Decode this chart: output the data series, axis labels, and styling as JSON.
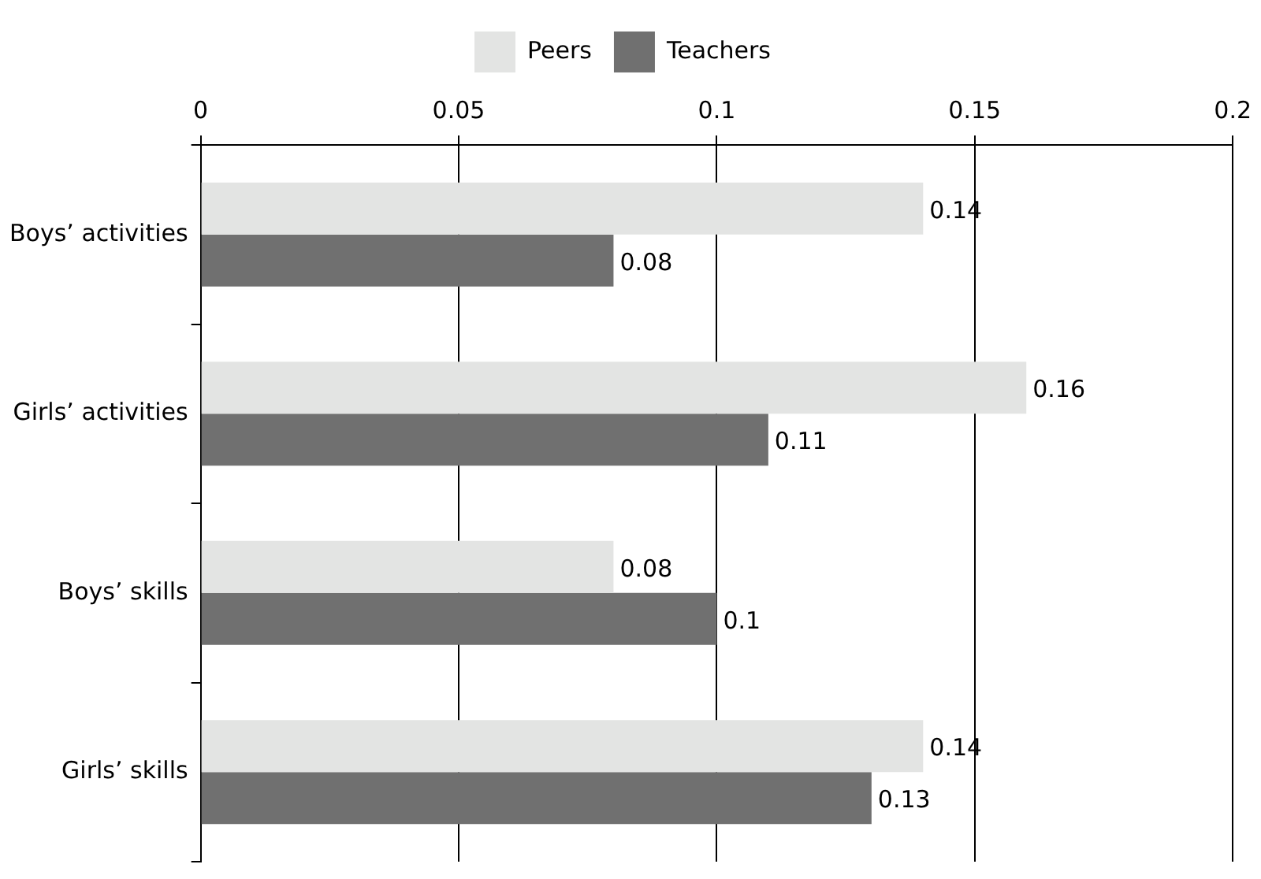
{
  "chart_data": {
    "type": "bar",
    "orientation": "horizontal",
    "categories": [
      "Boys’ activities",
      "Girls’ activities",
      "Boys’ skills",
      "Girls’ skills"
    ],
    "series": [
      {
        "name": "Peers",
        "color": "#e3e4e3",
        "values": [
          0.14,
          0.16,
          0.08,
          0.14
        ]
      },
      {
        "name": "Teachers",
        "color": "#707070",
        "values": [
          0.08,
          0.11,
          0.1,
          0.13
        ]
      }
    ],
    "xlim": [
      0,
      0.2
    ],
    "xticks": [
      0,
      0.05,
      0.1,
      0.15,
      0.2
    ],
    "grid": "x",
    "legend": "top",
    "data_labels": true
  }
}
